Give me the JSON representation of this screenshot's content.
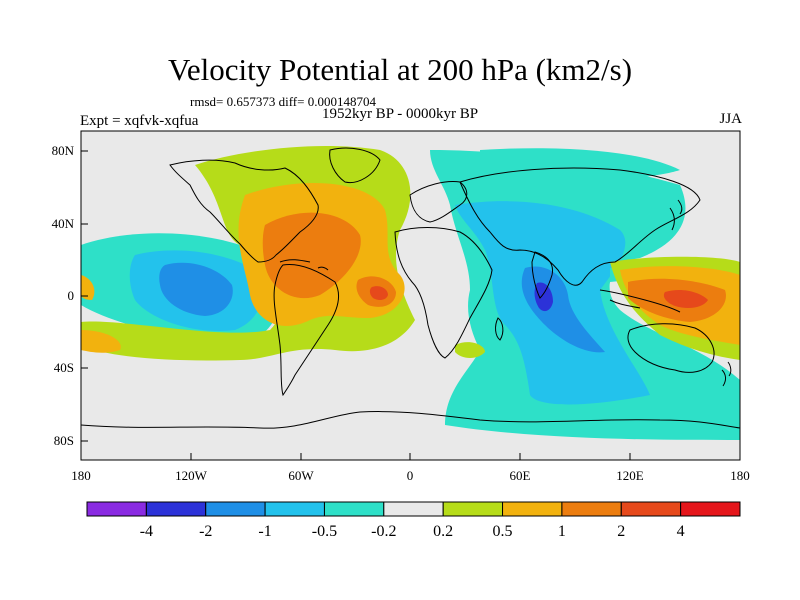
{
  "title": "Velocity Potential at 200 hPa (km2/s)",
  "stats": "rmsd= 0.657373 diff= 0.000148704",
  "period": "1952kyr BP - 0000kyr BP",
  "experiment": "Expt = xqfvk-xqfua",
  "season": "JJA",
  "lat_ticks": [
    "80N",
    "40N",
    "0",
    "40S",
    "80S"
  ],
  "lon_ticks": [
    "180",
    "120W",
    "60W",
    "0",
    "60E",
    "120E",
    "180"
  ],
  "colorbar": {
    "labels": [
      "-4",
      "-2",
      "-1",
      "-0.5",
      "-0.2",
      "0.2",
      "0.5",
      "1",
      "2",
      "4"
    ],
    "colors": [
      "#8a2be2",
      "#2c32d8",
      "#1f8fe6",
      "#23c2ec",
      "#2ee0c8",
      "#e9e9e9",
      "#b6dc19",
      "#f2b20e",
      "#ec7d0f",
      "#e6491b",
      "#e5161b"
    ]
  }
}
